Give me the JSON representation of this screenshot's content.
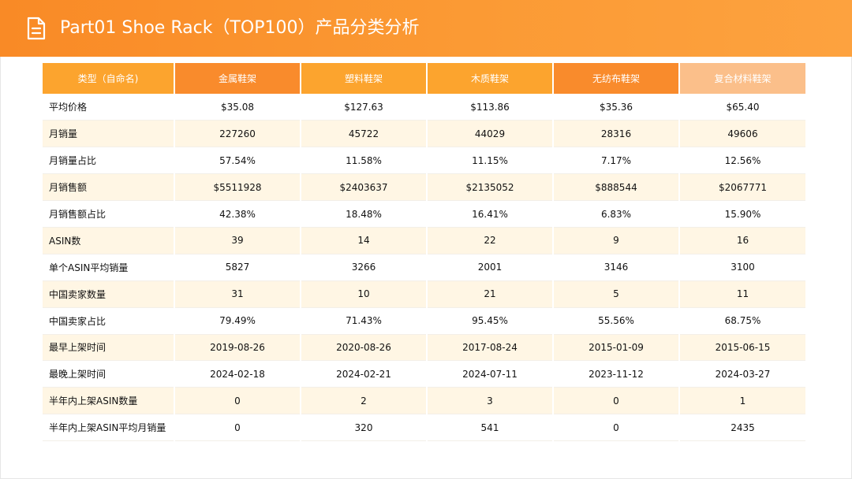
{
  "header": {
    "title": "Part01 Shoe Rack（TOP100）产品分类分析",
    "icon": "document-icon"
  },
  "table": {
    "columns": [
      {
        "label": "类型（自命名)",
        "color": "#fca42e"
      },
      {
        "label": "金属鞋架",
        "color": "#f98b2c"
      },
      {
        "label": "塑料鞋架",
        "color": "#fca42e"
      },
      {
        "label": "木质鞋架",
        "color": "#fca42e"
      },
      {
        "label": "无纺布鞋架",
        "color": "#f98b2c"
      },
      {
        "label": "复合材料鞋架",
        "color": "#fbbf8a"
      }
    ],
    "rows": [
      {
        "label": "平均价格",
        "values": [
          "$35.08",
          "$127.63",
          "$113.86",
          "$35.36",
          "$65.40"
        ]
      },
      {
        "label": "月销量",
        "values": [
          "227260",
          "45722",
          "44029",
          "28316",
          "49606"
        ]
      },
      {
        "label": "月销量占比",
        "values": [
          "57.54%",
          "11.58%",
          "11.15%",
          "7.17%",
          "12.56%"
        ]
      },
      {
        "label": "月销售额",
        "values": [
          "$5511928",
          "$2403637",
          "$2135052",
          "$888544",
          "$2067771"
        ]
      },
      {
        "label": "月销售额占比",
        "values": [
          "42.38%",
          "18.48%",
          "16.41%",
          "6.83%",
          "15.90%"
        ]
      },
      {
        "label": "ASIN数",
        "values": [
          "39",
          "14",
          "22",
          "9",
          "16"
        ]
      },
      {
        "label": "单个ASIN平均销量",
        "values": [
          "5827",
          "3266",
          "2001",
          "3146",
          "3100"
        ]
      },
      {
        "label": "中国卖家数量",
        "values": [
          "31",
          "10",
          "21",
          "5",
          "11"
        ]
      },
      {
        "label": "中国卖家占比",
        "values": [
          "79.49%",
          "71.43%",
          "95.45%",
          "55.56%",
          "68.75%"
        ]
      },
      {
        "label": "最早上架时间",
        "values": [
          "2019-08-26",
          "2020-08-26",
          "2017-08-24",
          "2015-01-09",
          "2015-06-15"
        ]
      },
      {
        "label": "最晚上架时间",
        "values": [
          "2024-02-18",
          "2024-02-21",
          "2024-07-11",
          "2023-11-12",
          "2024-03-27"
        ]
      },
      {
        "label": "半年内上架ASIN数量",
        "values": [
          "0",
          "2",
          "3",
          "0",
          "1"
        ]
      },
      {
        "label": "半年内上架ASIN平均月销量",
        "values": [
          "0",
          "320",
          "541",
          "0",
          "2435"
        ]
      }
    ]
  }
}
